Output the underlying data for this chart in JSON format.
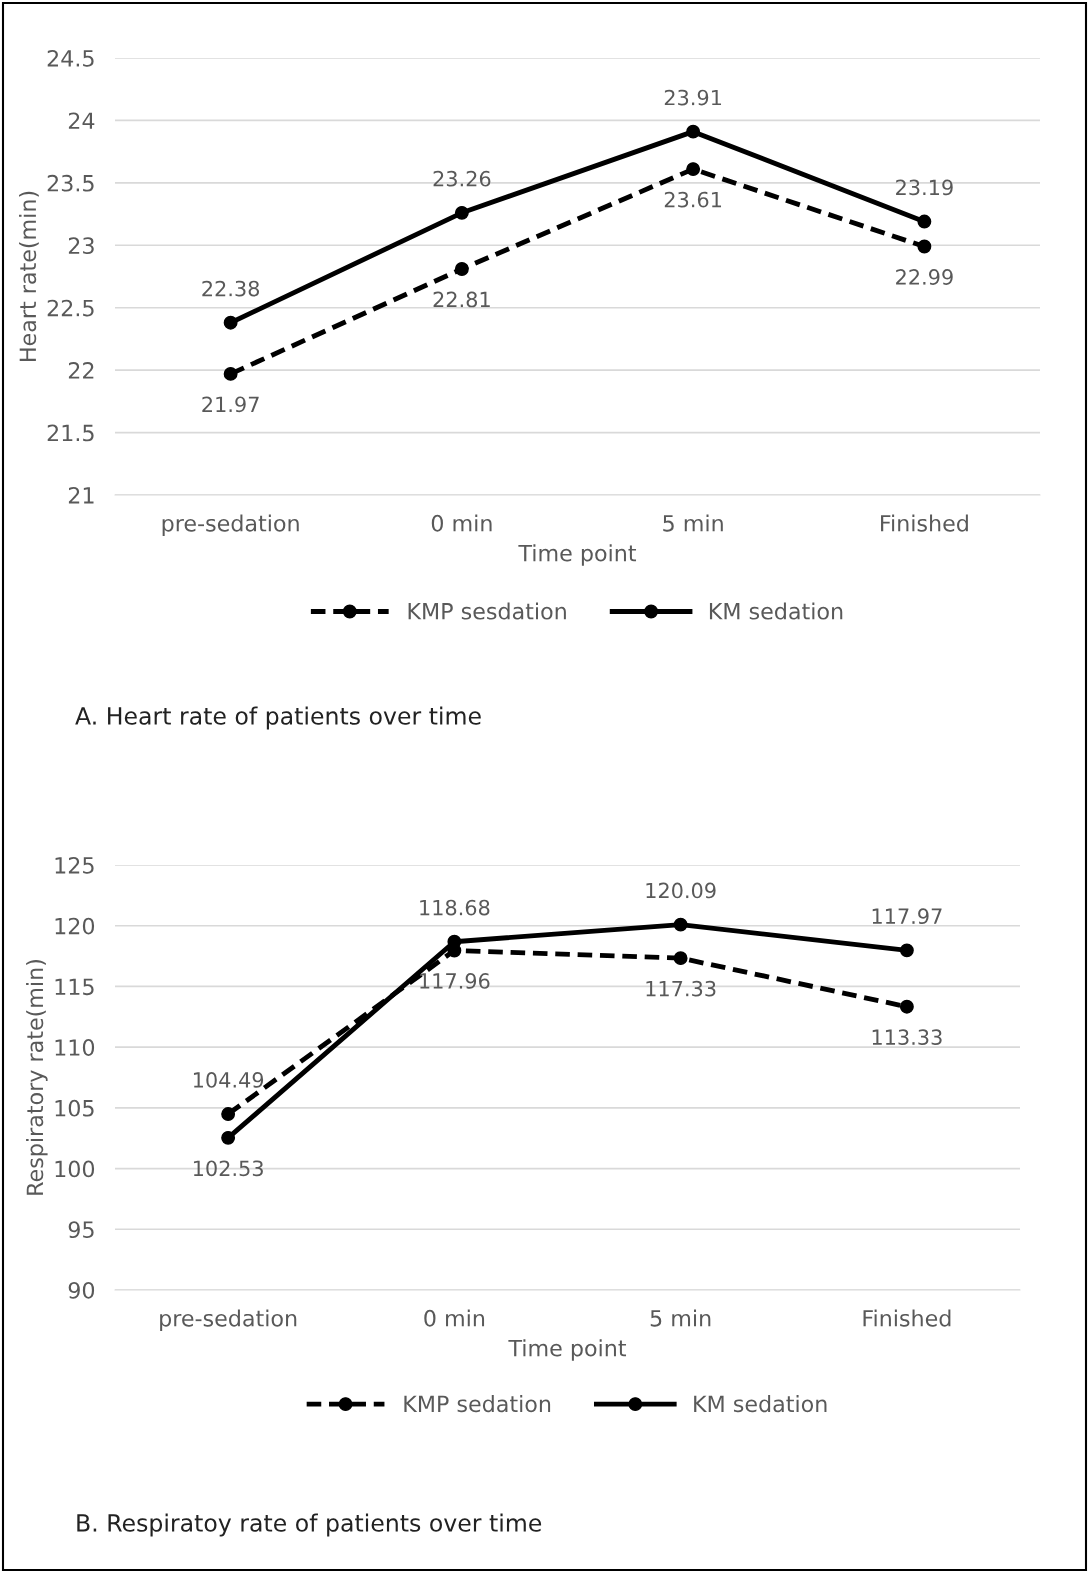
{
  "chart_data": [
    {
      "type": "line",
      "xlabel": "Time point",
      "ylabel": "Heart rate(min)",
      "categories": [
        "pre-sedation",
        "0 min",
        "5 min",
        "Finished"
      ],
      "series": [
        {
          "name": "KMP sesdation",
          "color": "#000000",
          "line_style": "dashed",
          "values": [
            21.97,
            22.81,
            23.61,
            22.99
          ]
        },
        {
          "name": "KM sedation",
          "color": "#000000",
          "line_style": "solid",
          "values": [
            22.38,
            23.26,
            23.91,
            23.19
          ]
        }
      ],
      "ylim": [
        21,
        24.5
      ],
      "yticks": [
        21,
        21.5,
        22,
        22.5,
        23,
        23.5,
        24,
        24.5
      ],
      "grid": "y",
      "legend": "bottom",
      "marker": "circle",
      "data_labels": true,
      "annotations": [
        "A. Heart rate of patients over time"
      ]
    },
    {
      "type": "line",
      "xlabel": "Time point",
      "ylabel": "Respiratory rate(min)",
      "categories": [
        "pre-sedation",
        "0 min",
        "5 min",
        "Finished"
      ],
      "series": [
        {
          "name": "KMP sedation",
          "color": "#000000",
          "line_style": "dashed",
          "values": [
            104.49,
            117.96,
            117.33,
            113.33
          ]
        },
        {
          "name": "KM sedation",
          "color": "#000000",
          "line_style": "solid",
          "values": [
            102.53,
            118.68,
            120.09,
            117.97
          ]
        }
      ],
      "ylim": [
        90,
        125
      ],
      "yticks": [
        90,
        95,
        100,
        105,
        110,
        115,
        120,
        125
      ],
      "grid": "y",
      "legend": "bottom",
      "marker": "circle",
      "data_labels": true,
      "annotations": [
        "B. Respiratoy rate of patients over time"
      ]
    }
  ]
}
